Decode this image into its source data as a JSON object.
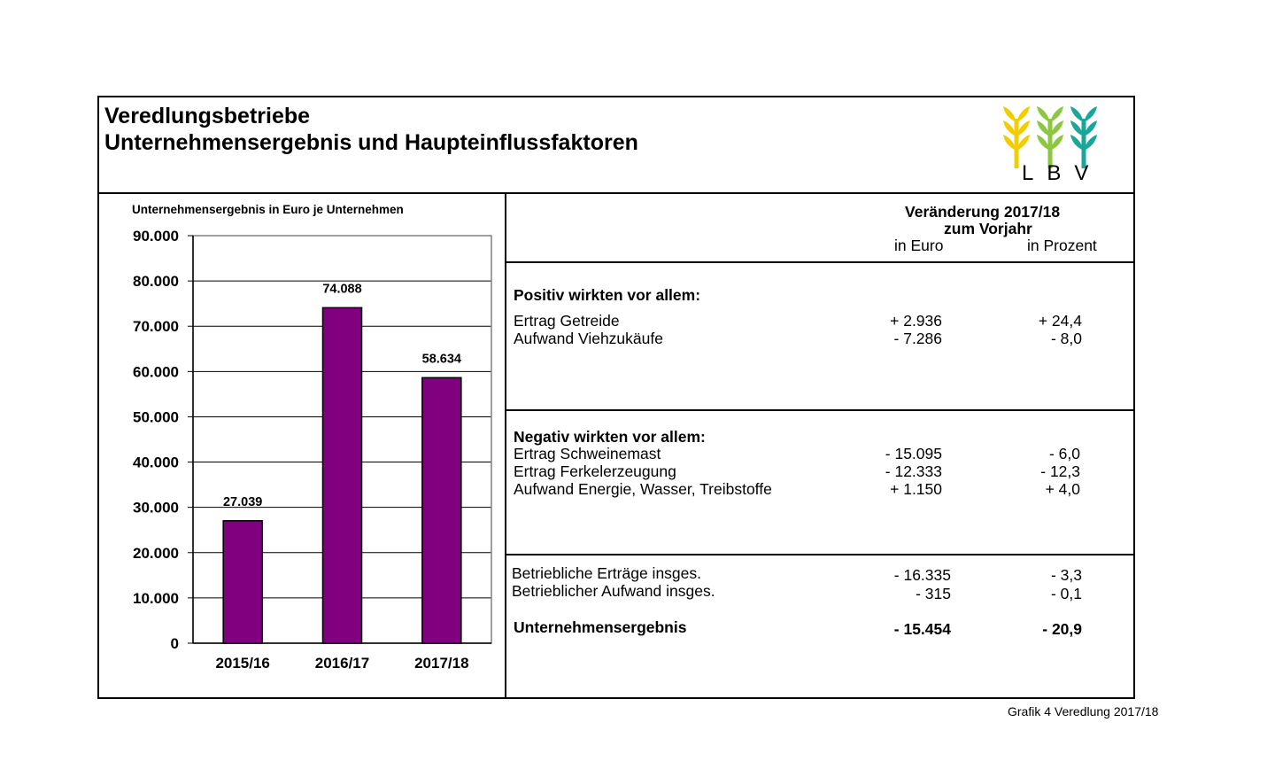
{
  "header": {
    "title_line1": "Veredlungsbetriebe",
    "title_line2": "Unternehmensergebnis und Haupteinflussfaktoren",
    "logo_text": "LBV",
    "logo_colors": [
      "#f2cd00",
      "#8dc63f",
      "#1aa79a"
    ]
  },
  "chart_data": {
    "type": "bar",
    "title": "Unternehmensergebnis in Euro je Unternehmen",
    "categories": [
      "2015/16",
      "2016/17",
      "2017/18"
    ],
    "values": [
      27039,
      74088,
      58634
    ],
    "value_labels": [
      "27.039",
      "74.088",
      "58.634"
    ],
    "ylim": [
      0,
      90000
    ],
    "yticks": [
      0,
      10000,
      20000,
      30000,
      40000,
      50000,
      60000,
      70000,
      80000,
      90000
    ],
    "ytick_labels": [
      "0",
      "10.000",
      "20.000",
      "30.000",
      "40.000",
      "50.000",
      "60.000",
      "70.000",
      "80.000",
      "90.000"
    ],
    "grid": true,
    "bar_color": "#800080"
  },
  "table": {
    "head_line1": "Veränderung 2017/18",
    "head_line2": "zum Vorjahr",
    "col_euro": "in Euro",
    "col_pct": "in Prozent",
    "positive": {
      "heading": "Positiv wirkten vor allem:",
      "rows": [
        {
          "label": "Ertrag Getreide",
          "euro": "+ 2.936",
          "pct": "+ 24,4"
        },
        {
          "label": "Aufwand Viehzukäufe",
          "euro": "- 7.286",
          "pct": "- 8,0"
        }
      ]
    },
    "negative": {
      "heading": "Negativ wirkten vor allem:",
      "rows": [
        {
          "label": "Ertrag Schweinemast",
          "euro": "- 15.095",
          "pct": "- 6,0"
        },
        {
          "label": "Ertrag Ferkelerzeugung",
          "euro": "- 12.333",
          "pct": "- 12,3"
        },
        {
          "label": "Aufwand Energie, Wasser, Treibstoffe",
          "euro": "+ 1.150",
          "pct": "+ 4,0"
        }
      ]
    },
    "totals": {
      "rows": [
        {
          "label": "Betriebliche Erträge insges.",
          "euro": "- 16.335",
          "pct": "- 3,3"
        },
        {
          "label": "Betrieblicher Aufwand insges.",
          "euro": "- 315",
          "pct": "- 0,1"
        }
      ],
      "result": {
        "label": "Unternehmensergebnis",
        "euro": "- 15.454",
        "pct": "- 20,9"
      }
    }
  },
  "footer": {
    "caption": "Grafik 4 Veredlung 2017/18"
  }
}
